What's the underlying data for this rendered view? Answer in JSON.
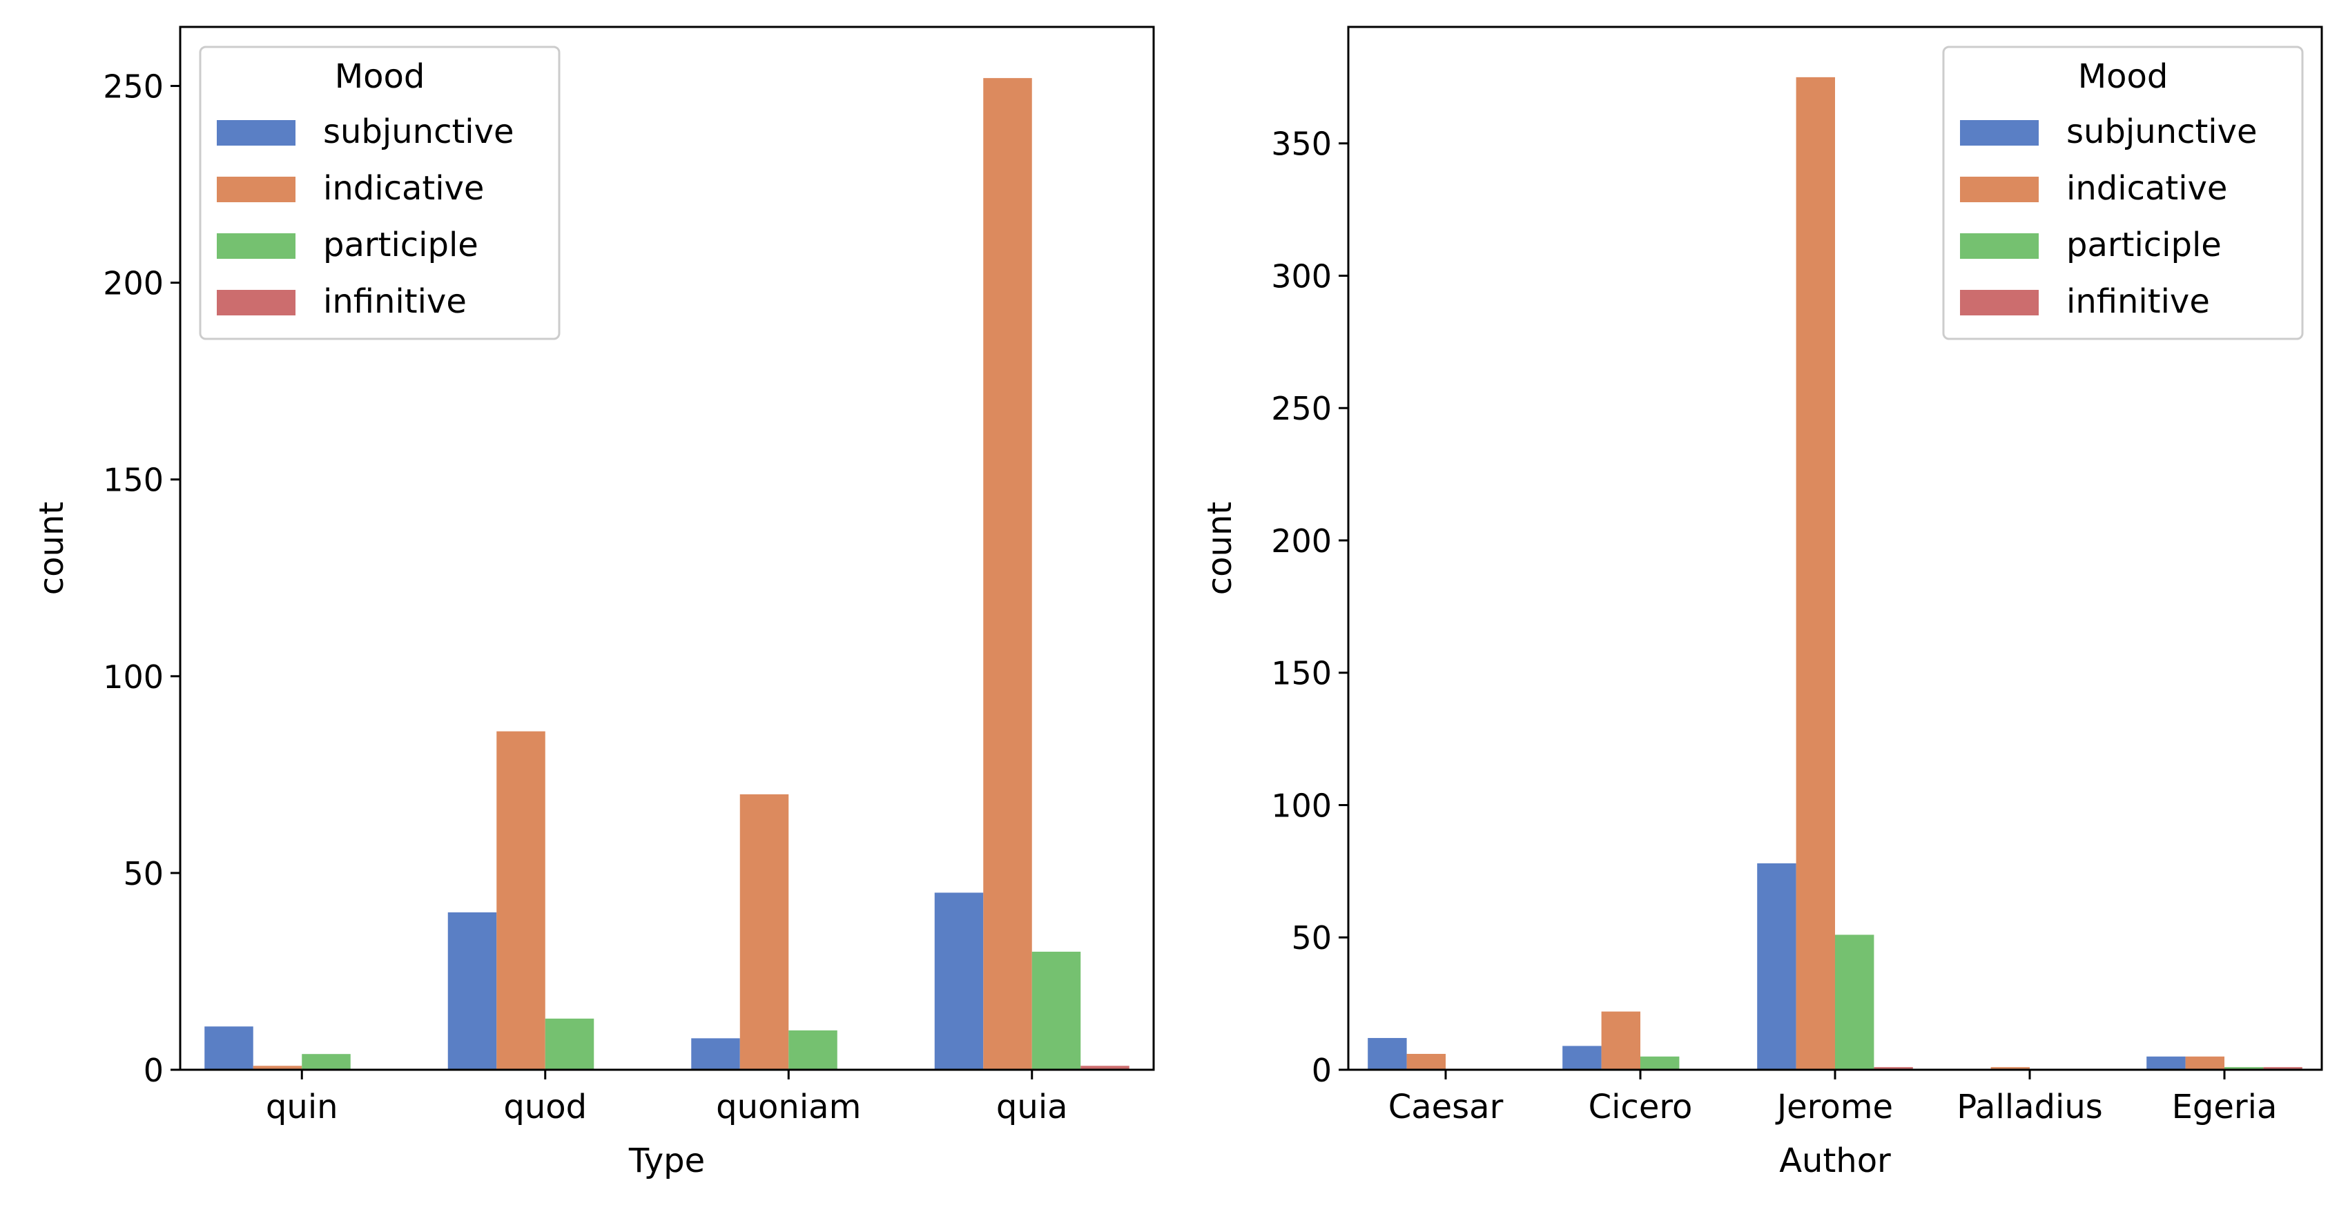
{
  "chart_data": [
    {
      "type": "bar",
      "title": "",
      "xlabel": "Type",
      "ylabel": "count",
      "categories": [
        "quin",
        "quod",
        "quoniam",
        "quia"
      ],
      "ylim": [
        0,
        265
      ],
      "yticks": [
        0,
        50,
        100,
        150,
        200,
        250
      ],
      "grid": false,
      "legend": {
        "title": "Mood",
        "placement": "upper left"
      },
      "series": [
        {
          "name": "subjunctive",
          "color": "#5a7fc5",
          "values": [
            11,
            40,
            8,
            45
          ]
        },
        {
          "name": "indicative",
          "color": "#dc8a5e",
          "values": [
            1,
            86,
            70,
            252
          ]
        },
        {
          "name": "participle",
          "color": "#75c170",
          "values": [
            4,
            13,
            10,
            30
          ]
        },
        {
          "name": "infinitive",
          "color": "#cc6d6e",
          "values": [
            0,
            0,
            0,
            1
          ]
        }
      ]
    },
    {
      "type": "bar",
      "title": "",
      "xlabel": "Author",
      "ylabel": "count",
      "categories": [
        "Caesar",
        "Cicero",
        "Jerome",
        "Palladius",
        "Egeria"
      ],
      "ylim": [
        0,
        394
      ],
      "yticks": [
        0,
        50,
        100,
        150,
        200,
        250,
        300,
        350
      ],
      "grid": false,
      "legend": {
        "title": "Mood",
        "placement": "upper right"
      },
      "series": [
        {
          "name": "subjunctive",
          "color": "#5a7fc5",
          "values": [
            12,
            9,
            78,
            0,
            5
          ]
        },
        {
          "name": "indicative",
          "color": "#dc8a5e",
          "values": [
            6,
            22,
            375,
            1,
            5
          ]
        },
        {
          "name": "participle",
          "color": "#75c170",
          "values": [
            0,
            5,
            51,
            0,
            1
          ]
        },
        {
          "name": "infinitive",
          "color": "#cc6d6e",
          "values": [
            0,
            0,
            1,
            0,
            1
          ]
        }
      ]
    }
  ]
}
